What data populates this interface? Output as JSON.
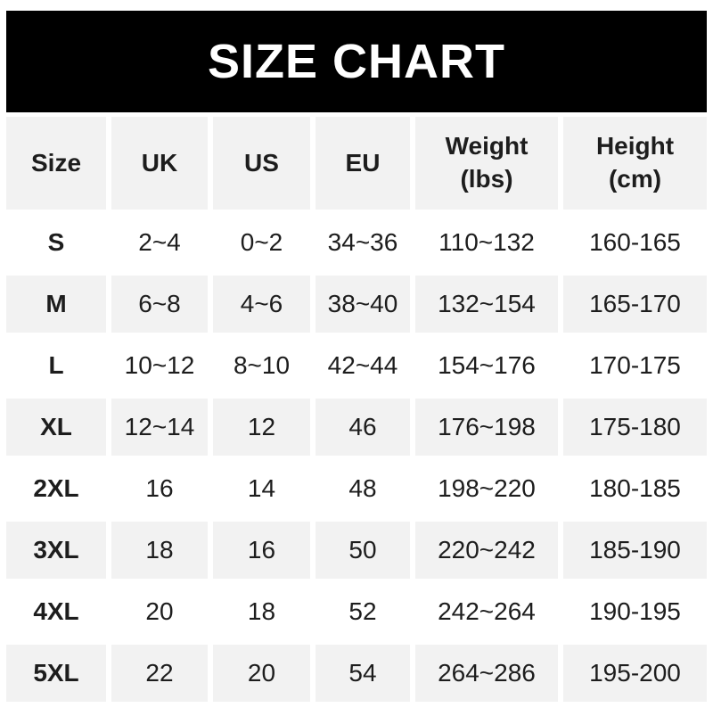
{
  "banner": {
    "title": "SIZE CHART",
    "bg_color": "#000000",
    "text_color": "#ffffff"
  },
  "table": {
    "header_bg": "#f2f2f2",
    "row_bg": "#ffffff",
    "row_alt_bg": "#f2f2f2",
    "text_color": "#1d1d1d",
    "columns": [
      {
        "key": "size",
        "label": "Size"
      },
      {
        "key": "uk",
        "label": "UK"
      },
      {
        "key": "us",
        "label": "US"
      },
      {
        "key": "eu",
        "label": "EU"
      },
      {
        "key": "weight",
        "label": "Weight (lbs)"
      },
      {
        "key": "height",
        "label": "Height (cm)"
      }
    ],
    "rows": [
      {
        "size": "S",
        "uk": "2~4",
        "us": "0~2",
        "eu": "34~36",
        "weight": "110~132",
        "height": "160-165"
      },
      {
        "size": "M",
        "uk": "6~8",
        "us": "4~6",
        "eu": "38~40",
        "weight": "132~154",
        "height": "165-170"
      },
      {
        "size": "L",
        "uk": "10~12",
        "us": "8~10",
        "eu": "42~44",
        "weight": "154~176",
        "height": "170-175"
      },
      {
        "size": "XL",
        "uk": "12~14",
        "us": "12",
        "eu": "46",
        "weight": "176~198",
        "height": "175-180"
      },
      {
        "size": "2XL",
        "uk": "16",
        "us": "14",
        "eu": "48",
        "weight": "198~220",
        "height": "180-185"
      },
      {
        "size": "3XL",
        "uk": "18",
        "us": "16",
        "eu": "50",
        "weight": "220~242",
        "height": "185-190"
      },
      {
        "size": "4XL",
        "uk": "20",
        "us": "18",
        "eu": "52",
        "weight": "242~264",
        "height": "190-195"
      },
      {
        "size": "5XL",
        "uk": "22",
        "us": "20",
        "eu": "54",
        "weight": "264~286",
        "height": "195-200"
      }
    ]
  },
  "chart_data": {
    "type": "table",
    "title": "SIZE CHART",
    "columns": [
      "Size",
      "UK",
      "US",
      "EU",
      "Weight (lbs)",
      "Height (cm)"
    ],
    "rows": [
      [
        "S",
        "2~4",
        "0~2",
        "34~36",
        "110~132",
        "160-165"
      ],
      [
        "M",
        "6~8",
        "4~6",
        "38~40",
        "132~154",
        "165-170"
      ],
      [
        "L",
        "10~12",
        "8~10",
        "42~44",
        "154~176",
        "170-175"
      ],
      [
        "XL",
        "12~14",
        "12",
        "46",
        "176~198",
        "175-180"
      ],
      [
        "2XL",
        "16",
        "14",
        "48",
        "198~220",
        "180-185"
      ],
      [
        "3XL",
        "18",
        "16",
        "50",
        "220~242",
        "185-190"
      ],
      [
        "4XL",
        "20",
        "18",
        "52",
        "242~264",
        "190-195"
      ],
      [
        "5XL",
        "22",
        "20",
        "54",
        "264~286",
        "195-200"
      ]
    ]
  }
}
